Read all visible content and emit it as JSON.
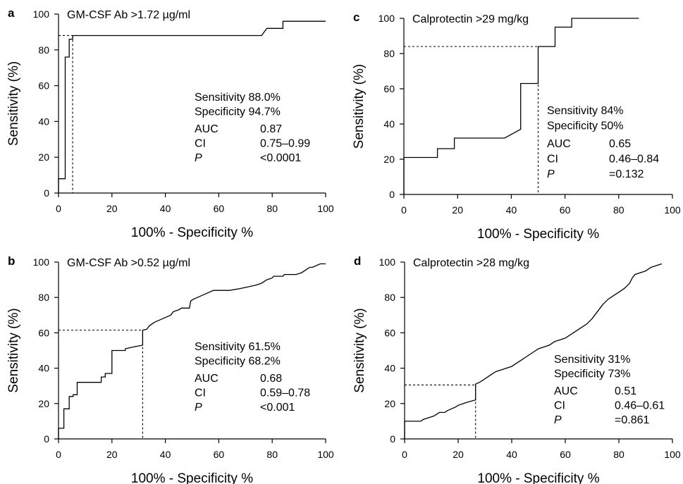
{
  "chart_data": [
    {
      "panel": "a",
      "type": "line",
      "title": "GM-CSF Ab  >1.72 µg/ml",
      "xlabel": "100% - Specificity %",
      "ylabel": "Sensitivity (%)",
      "xlim": [
        0,
        100
      ],
      "ylim": [
        0,
        100
      ],
      "xticks": [
        "0",
        "20",
        "40",
        "60",
        "80",
        "100"
      ],
      "yticks": [
        "0",
        "20",
        "40",
        "60",
        "80",
        "100"
      ],
      "x": [
        0,
        0,
        2.5,
        2.5,
        4,
        4,
        5.3,
        5.3,
        76,
        78,
        78,
        84,
        84,
        100
      ],
      "y": [
        0,
        8,
        8,
        76,
        76,
        86,
        86,
        88,
        88,
        92,
        92,
        92,
        96,
        96
      ],
      "cutoff": {
        "x": 5.3,
        "y": 88
      },
      "stats": [
        {
          "label": "Sensitivity 88.0%",
          "value": ""
        },
        {
          "label": "Specificity 94.7%",
          "value": ""
        },
        {
          "label": "AUC",
          "value": "0.87"
        },
        {
          "label": "CI",
          "value": "0.75–0.99"
        },
        {
          "label": "P",
          "value": "<0.0001",
          "italic": true
        }
      ]
    },
    {
      "panel": "c",
      "type": "line",
      "title": "Calprotectin >29 mg/kg",
      "xlabel": "100% - Specificity %",
      "ylabel": "Sensitivity (%)",
      "xlim": [
        0,
        100
      ],
      "ylim": [
        0,
        100
      ],
      "xticks": [
        "0",
        "20",
        "40",
        "60",
        "80",
        "100"
      ],
      "yticks": [
        "0",
        "20",
        "40",
        "60",
        "80",
        "100"
      ],
      "x": [
        0,
        0,
        12.5,
        12.5,
        18.8,
        18.8,
        37.5,
        43.5,
        43.5,
        50,
        50,
        56.3,
        56.3,
        62.5,
        62.5,
        87.5
      ],
      "y": [
        0,
        21,
        21,
        26,
        26,
        32,
        32,
        37,
        63,
        63,
        84,
        84,
        95,
        95,
        100,
        100
      ],
      "cutoff": {
        "x": 50,
        "y": 84
      },
      "stats": [
        {
          "label": "Sensitivity 84%",
          "value": ""
        },
        {
          "label": "Specificity 50%",
          "value": ""
        },
        {
          "label": "AUC",
          "value": "0.65"
        },
        {
          "label": "CI",
          "value": "0.46–0.84"
        },
        {
          "label": "P",
          "value": "=0.132",
          "italic": true
        }
      ]
    },
    {
      "panel": "b",
      "type": "line",
      "title": "GM-CSF Ab >0.52 µg/ml",
      "xlabel": "100% - Specificity %",
      "ylabel": "Sensitivity (%)",
      "xlim": [
        0,
        100
      ],
      "ylim": [
        0,
        100
      ],
      "xticks": [
        "0",
        "20",
        "40",
        "60",
        "80",
        "100"
      ],
      "yticks": [
        "0",
        "20",
        "40",
        "60",
        "80",
        "100"
      ],
      "x": [
        0,
        0,
        2,
        2,
        4,
        4,
        5.5,
        5.5,
        7,
        7,
        16,
        16,
        17.5,
        17.5,
        20,
        20,
        25,
        25,
        28,
        31.5,
        31.5,
        33,
        34,
        36,
        39,
        42,
        43,
        45,
        46,
        49,
        49.5,
        50.5,
        52,
        55,
        58,
        60,
        64,
        68,
        71,
        74,
        76,
        78,
        80,
        80.5,
        82,
        84,
        84.5,
        88,
        89,
        91,
        94,
        95,
        98,
        100
      ],
      "y": [
        0,
        6,
        6,
        17,
        17,
        24,
        24,
        25,
        25,
        32,
        32,
        35,
        35,
        37,
        37,
        50,
        50,
        51,
        52,
        53,
        61.5,
        62,
        64,
        66,
        68,
        70,
        72,
        73,
        74,
        74,
        78,
        79,
        80,
        82,
        84,
        84,
        84,
        85,
        86,
        87,
        88,
        90,
        91,
        92,
        92,
        92,
        93,
        93,
        93,
        94,
        97,
        97,
        99,
        99
      ],
      "cutoff": {
        "x": 31.5,
        "y": 61.5
      },
      "stats": [
        {
          "label": "Sensitivity 61.5%",
          "value": ""
        },
        {
          "label": "Specificity 68.2%",
          "value": ""
        },
        {
          "label": "AUC",
          "value": "0.68"
        },
        {
          "label": "CI",
          "value": "0.59–0.78"
        },
        {
          "label": "P",
          "value": "<0.001",
          "italic": true
        }
      ]
    },
    {
      "panel": "d",
      "type": "line",
      "title": "Calprotectin >28 mg/kg",
      "xlabel": "100% - Specificity %",
      "ylabel": "Sensitivity (%)",
      "xlim": [
        0,
        100
      ],
      "ylim": [
        0,
        100
      ],
      "xticks": [
        "0",
        "20",
        "40",
        "60",
        "80",
        "100"
      ],
      "yticks": [
        "0",
        "20",
        "40",
        "60",
        "80",
        "100"
      ],
      "x": [
        0,
        0,
        6,
        7,
        9,
        11,
        12,
        13,
        15,
        16,
        19,
        20,
        22,
        24,
        26.5,
        26.5,
        28,
        30,
        32,
        34,
        36,
        38,
        40,
        42,
        44,
        46,
        48,
        50,
        52,
        54,
        56,
        58,
        60,
        62,
        64,
        66,
        68,
        70,
        72,
        74,
        76,
        78,
        80,
        82,
        84,
        85,
        86,
        88,
        90,
        92,
        94,
        96
      ],
      "y": [
        0,
        10,
        10,
        11,
        12,
        13,
        14,
        15,
        15,
        16,
        18,
        19,
        20,
        21,
        22,
        31,
        32,
        34,
        36,
        38,
        39,
        40,
        41,
        43,
        45,
        47,
        49,
        51,
        52,
        53,
        55,
        56,
        57,
        59,
        61,
        63,
        65,
        68,
        72,
        76,
        79,
        81,
        83,
        85,
        88,
        91,
        93,
        94,
        95,
        97,
        98,
        99
      ],
      "cutoff": {
        "x": 26.5,
        "y": 30.5
      },
      "stats": [
        {
          "label": "Sensitivity 31%",
          "value": ""
        },
        {
          "label": "Specificity 73%",
          "value": ""
        },
        {
          "label": "AUC",
          "value": "0.51"
        },
        {
          "label": "CI",
          "value": "0.46–0.61"
        },
        {
          "label": "P",
          "value": "=0.861",
          "italic": true
        }
      ]
    }
  ]
}
